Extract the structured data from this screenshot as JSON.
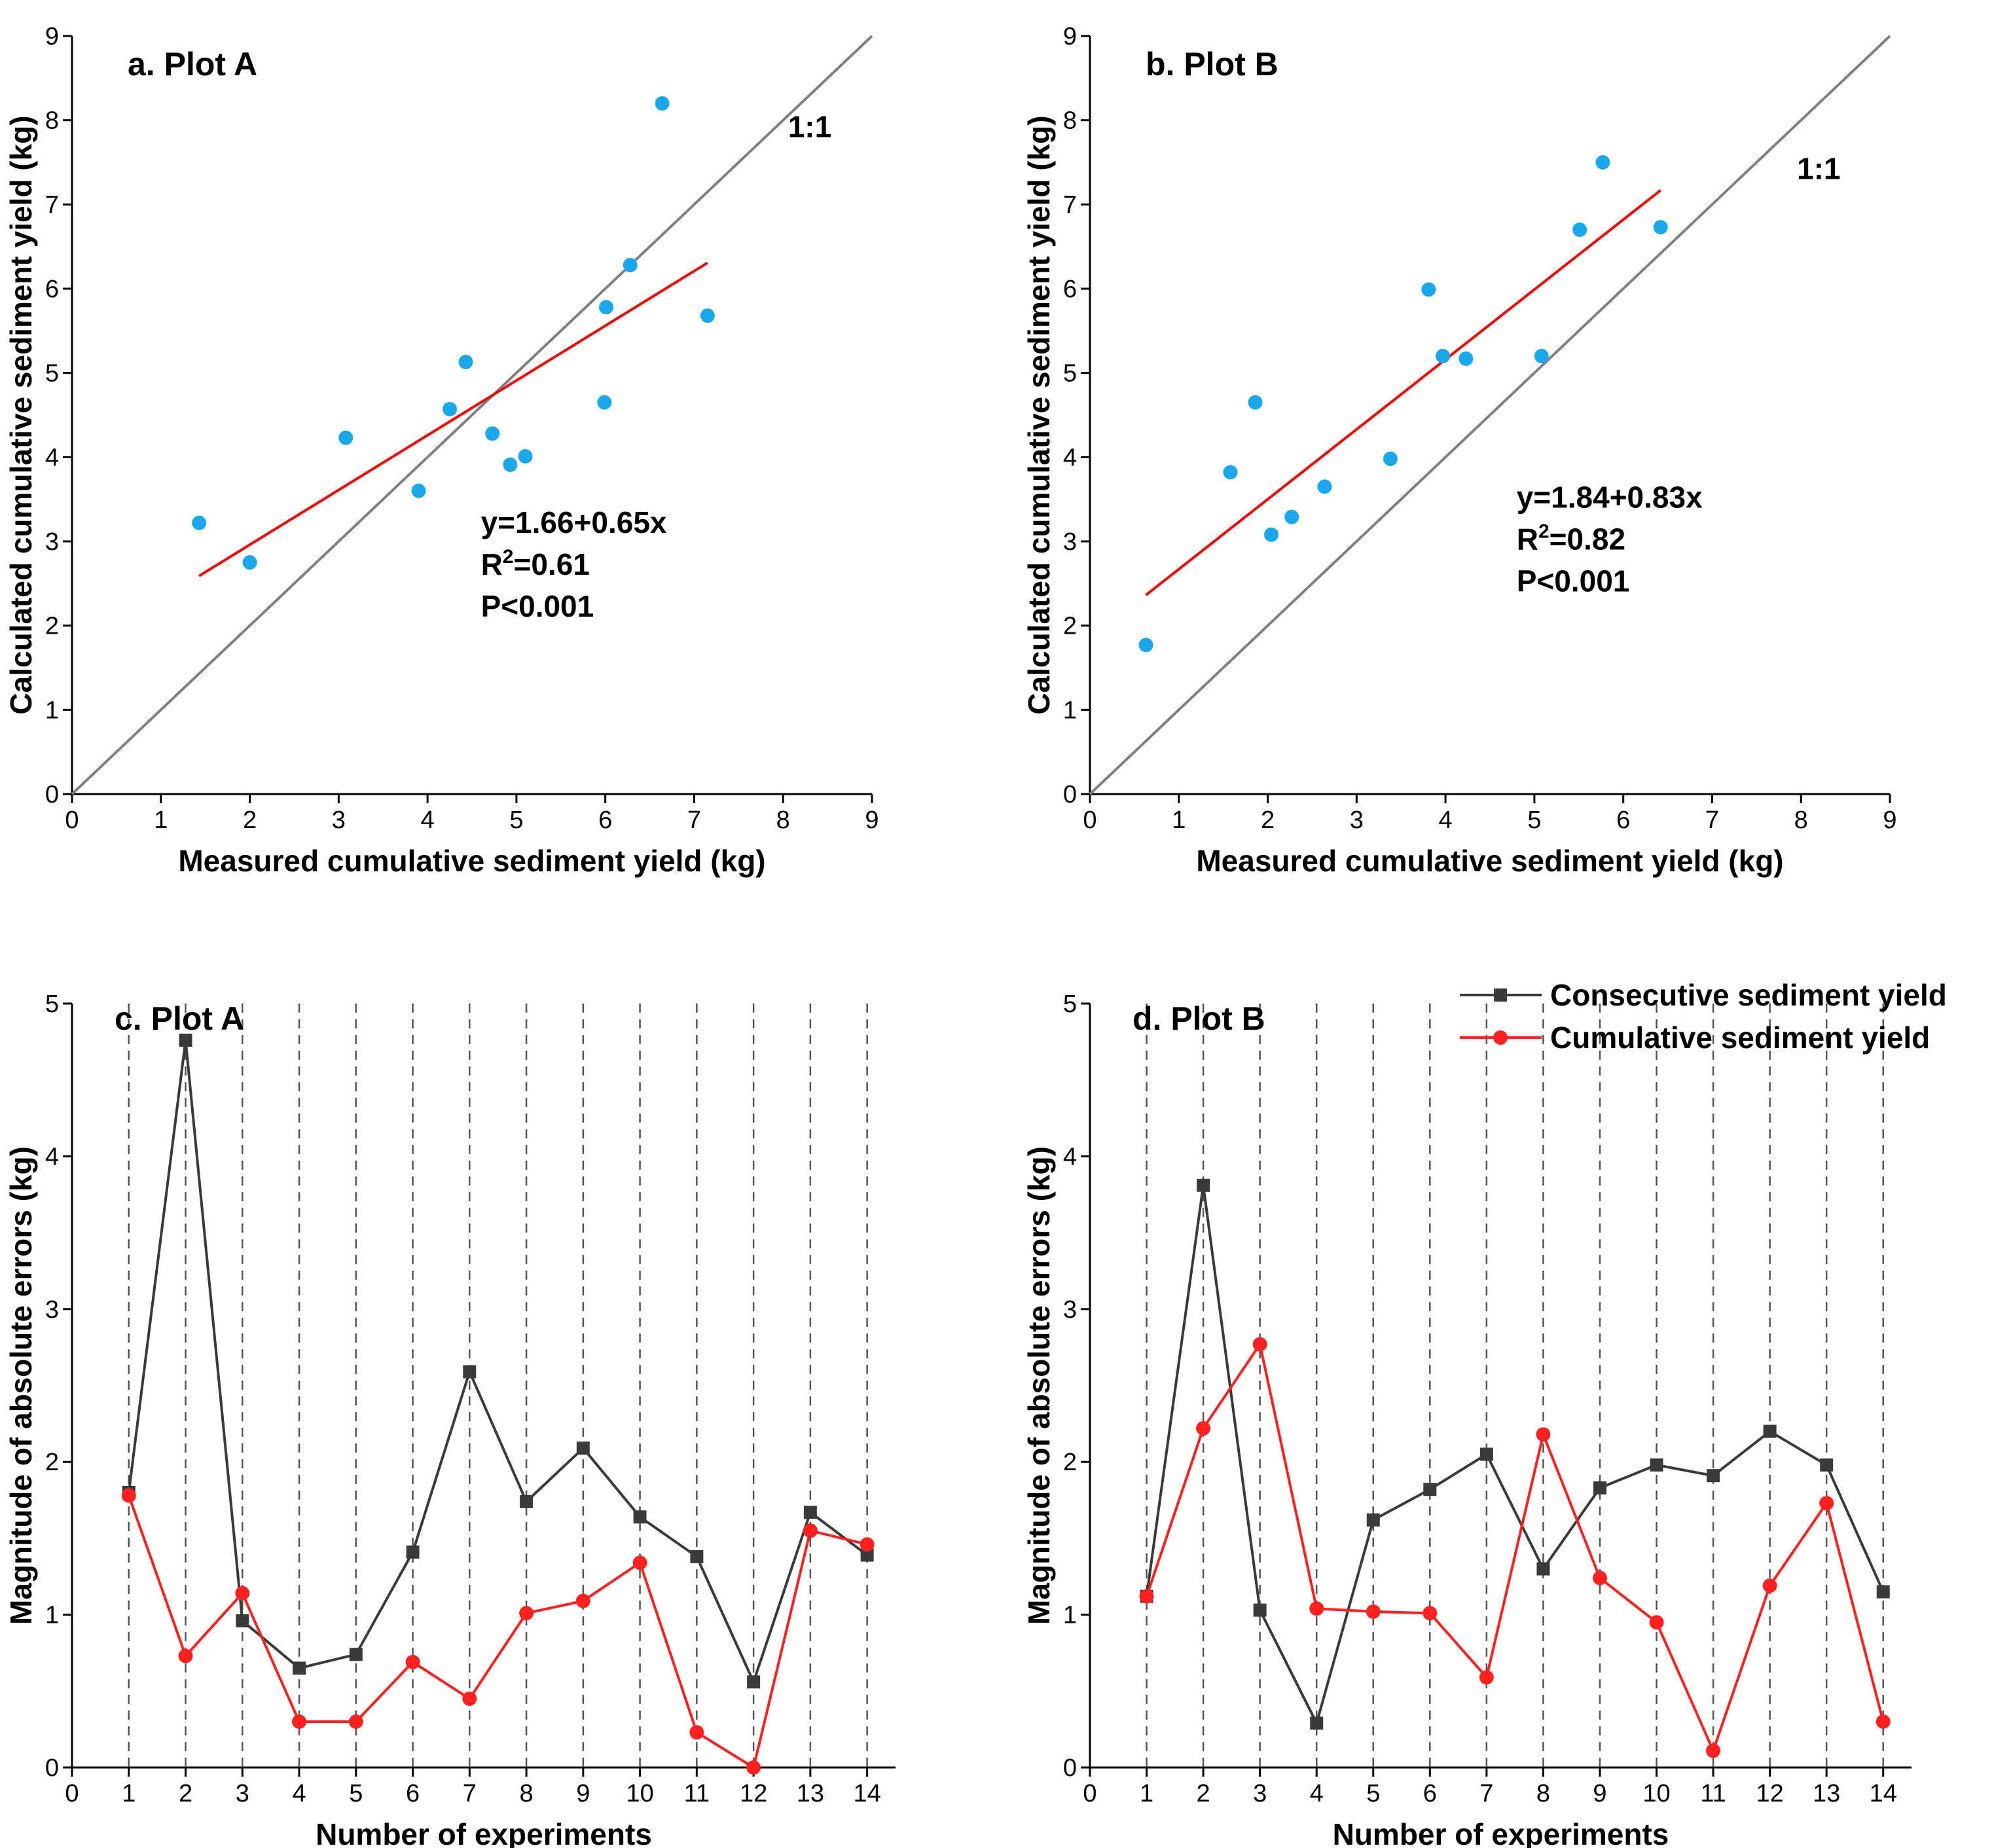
{
  "colors": {
    "scatter": "#1aa7ec",
    "fit": "#ff0000",
    "one_to_one": "#808080",
    "consecutive": "#3a3a3a",
    "cumulative": "#ff2020",
    "grid": "#555555"
  },
  "chart_data": [
    {
      "type": "scatter",
      "panel": "a",
      "title": "a. Plot A",
      "xlabel": "Measured cumulative sediment yield (kg)",
      "ylabel": "Calculated cumulative sediment yield (kg)",
      "xlim": [
        0,
        9
      ],
      "ylim": [
        0,
        9
      ],
      "xticks": [
        "0",
        "1",
        "2",
        "3",
        "4",
        "5",
        "6",
        "7",
        "8",
        "9"
      ],
      "yticks": [
        "0",
        "1",
        "2",
        "3",
        "4",
        "5",
        "6",
        "7",
        "8",
        "9"
      ],
      "points": [
        {
          "x": 1.43,
          "y": 3.22
        },
        {
          "x": 2.0,
          "y": 2.75
        },
        {
          "x": 3.08,
          "y": 4.23
        },
        {
          "x": 3.9,
          "y": 3.6
        },
        {
          "x": 4.25,
          "y": 4.57
        },
        {
          "x": 4.43,
          "y": 5.13
        },
        {
          "x": 4.73,
          "y": 4.28
        },
        {
          "x": 4.93,
          "y": 3.91
        },
        {
          "x": 5.1,
          "y": 4.01
        },
        {
          "x": 5.99,
          "y": 4.65
        },
        {
          "x": 6.01,
          "y": 5.78
        },
        {
          "x": 6.28,
          "y": 6.28
        },
        {
          "x": 6.64,
          "y": 8.2
        },
        {
          "x": 7.15,
          "y": 5.68
        }
      ],
      "fit": {
        "intercept": 1.66,
        "slope": 0.65,
        "x_range": [
          1.43,
          7.15
        ]
      },
      "one_to_one_label": "1:1",
      "equation": "y=1.66+0.65x",
      "r2_prefix": "R",
      "r2_sup": "2",
      "r2_value": "=0.61",
      "p_value": "P<0.001"
    },
    {
      "type": "scatter",
      "panel": "b",
      "title": "b. Plot B",
      "xlabel": "Measured cumulative sediment yield (kg)",
      "ylabel": "Calculated cumulative sediment yield (kg)",
      "xlim": [
        0,
        9
      ],
      "ylim": [
        0,
        9
      ],
      "xticks": [
        "0",
        "1",
        "2",
        "3",
        "4",
        "5",
        "6",
        "7",
        "8",
        "9"
      ],
      "yticks": [
        "0",
        "1",
        "2",
        "3",
        "4",
        "5",
        "6",
        "7",
        "8",
        "9"
      ],
      "points": [
        {
          "x": 0.63,
          "y": 1.77
        },
        {
          "x": 1.58,
          "y": 3.82
        },
        {
          "x": 1.86,
          "y": 4.65
        },
        {
          "x": 2.04,
          "y": 3.08
        },
        {
          "x": 2.27,
          "y": 3.29
        },
        {
          "x": 2.64,
          "y": 3.65
        },
        {
          "x": 3.38,
          "y": 3.98
        },
        {
          "x": 3.81,
          "y": 5.99
        },
        {
          "x": 3.97,
          "y": 5.2
        },
        {
          "x": 4.23,
          "y": 5.17
        },
        {
          "x": 5.08,
          "y": 5.2
        },
        {
          "x": 5.51,
          "y": 6.7
        },
        {
          "x": 5.77,
          "y": 7.5
        },
        {
          "x": 6.42,
          "y": 6.73
        }
      ],
      "fit": {
        "intercept": 1.84,
        "slope": 0.83,
        "x_range": [
          0.63,
          6.42
        ]
      },
      "one_to_one_label": "1:1",
      "equation": "y=1.84+0.83x",
      "r2_prefix": "R",
      "r2_sup": "2",
      "r2_value": "=0.82",
      "p_value": "P<0.001"
    },
    {
      "type": "line",
      "panel": "c",
      "title": "c. Plot A",
      "xlabel": "Number of experiments",
      "ylabel": "Magnitude of absolute errors (kg)",
      "xlim": [
        0,
        14.5
      ],
      "ylim": [
        0,
        5
      ],
      "xticks": [
        "0",
        "1",
        "2",
        "3",
        "4",
        "5",
        "6",
        "7",
        "8",
        "9",
        "10",
        "11",
        "12",
        "13",
        "14"
      ],
      "yticks": [
        "0",
        "1",
        "2",
        "3",
        "4",
        "5"
      ],
      "x": [
        1,
        2,
        3,
        4,
        5,
        6,
        7,
        8,
        9,
        10,
        11,
        12,
        13,
        14
      ],
      "series": [
        {
          "name": "Consecutive sediment yield",
          "values": [
            1.8,
            4.76,
            0.96,
            0.65,
            0.74,
            1.41,
            2.59,
            1.74,
            2.09,
            1.64,
            1.38,
            0.56,
            1.67,
            1.39
          ]
        },
        {
          "name": "Cumulative sediment yield",
          "values": [
            1.78,
            0.73,
            1.14,
            0.3,
            0.3,
            0.69,
            0.45,
            1.01,
            1.09,
            1.34,
            0.23,
            0.0,
            1.55,
            1.46
          ]
        }
      ]
    },
    {
      "type": "line",
      "panel": "d",
      "title": "d. Plot B",
      "xlabel": "Number of experiments",
      "ylabel": "Magnitude of absolute errors (kg)",
      "xlim": [
        0,
        14.5
      ],
      "ylim": [
        0,
        5
      ],
      "xticks": [
        "0",
        "1",
        "2",
        "3",
        "4",
        "5",
        "6",
        "7",
        "8",
        "9",
        "10",
        "11",
        "12",
        "13",
        "14"
      ],
      "yticks": [
        "0",
        "1",
        "2",
        "3",
        "4",
        "5"
      ],
      "x": [
        1,
        2,
        3,
        4,
        5,
        6,
        7,
        8,
        9,
        10,
        11,
        12,
        13,
        14
      ],
      "legend": "top-right",
      "series": [
        {
          "name": "Consecutive sediment yield",
          "values": [
            1.12,
            3.81,
            1.03,
            0.29,
            1.62,
            1.82,
            2.05,
            1.3,
            1.83,
            1.98,
            1.91,
            2.2,
            1.98,
            1.15
          ]
        },
        {
          "name": "Cumulative sediment yield",
          "values": [
            1.12,
            2.22,
            2.77,
            1.04,
            1.02,
            1.01,
            0.59,
            2.18,
            1.24,
            0.95,
            0.11,
            1.19,
            1.73,
            0.3
          ]
        }
      ]
    }
  ]
}
